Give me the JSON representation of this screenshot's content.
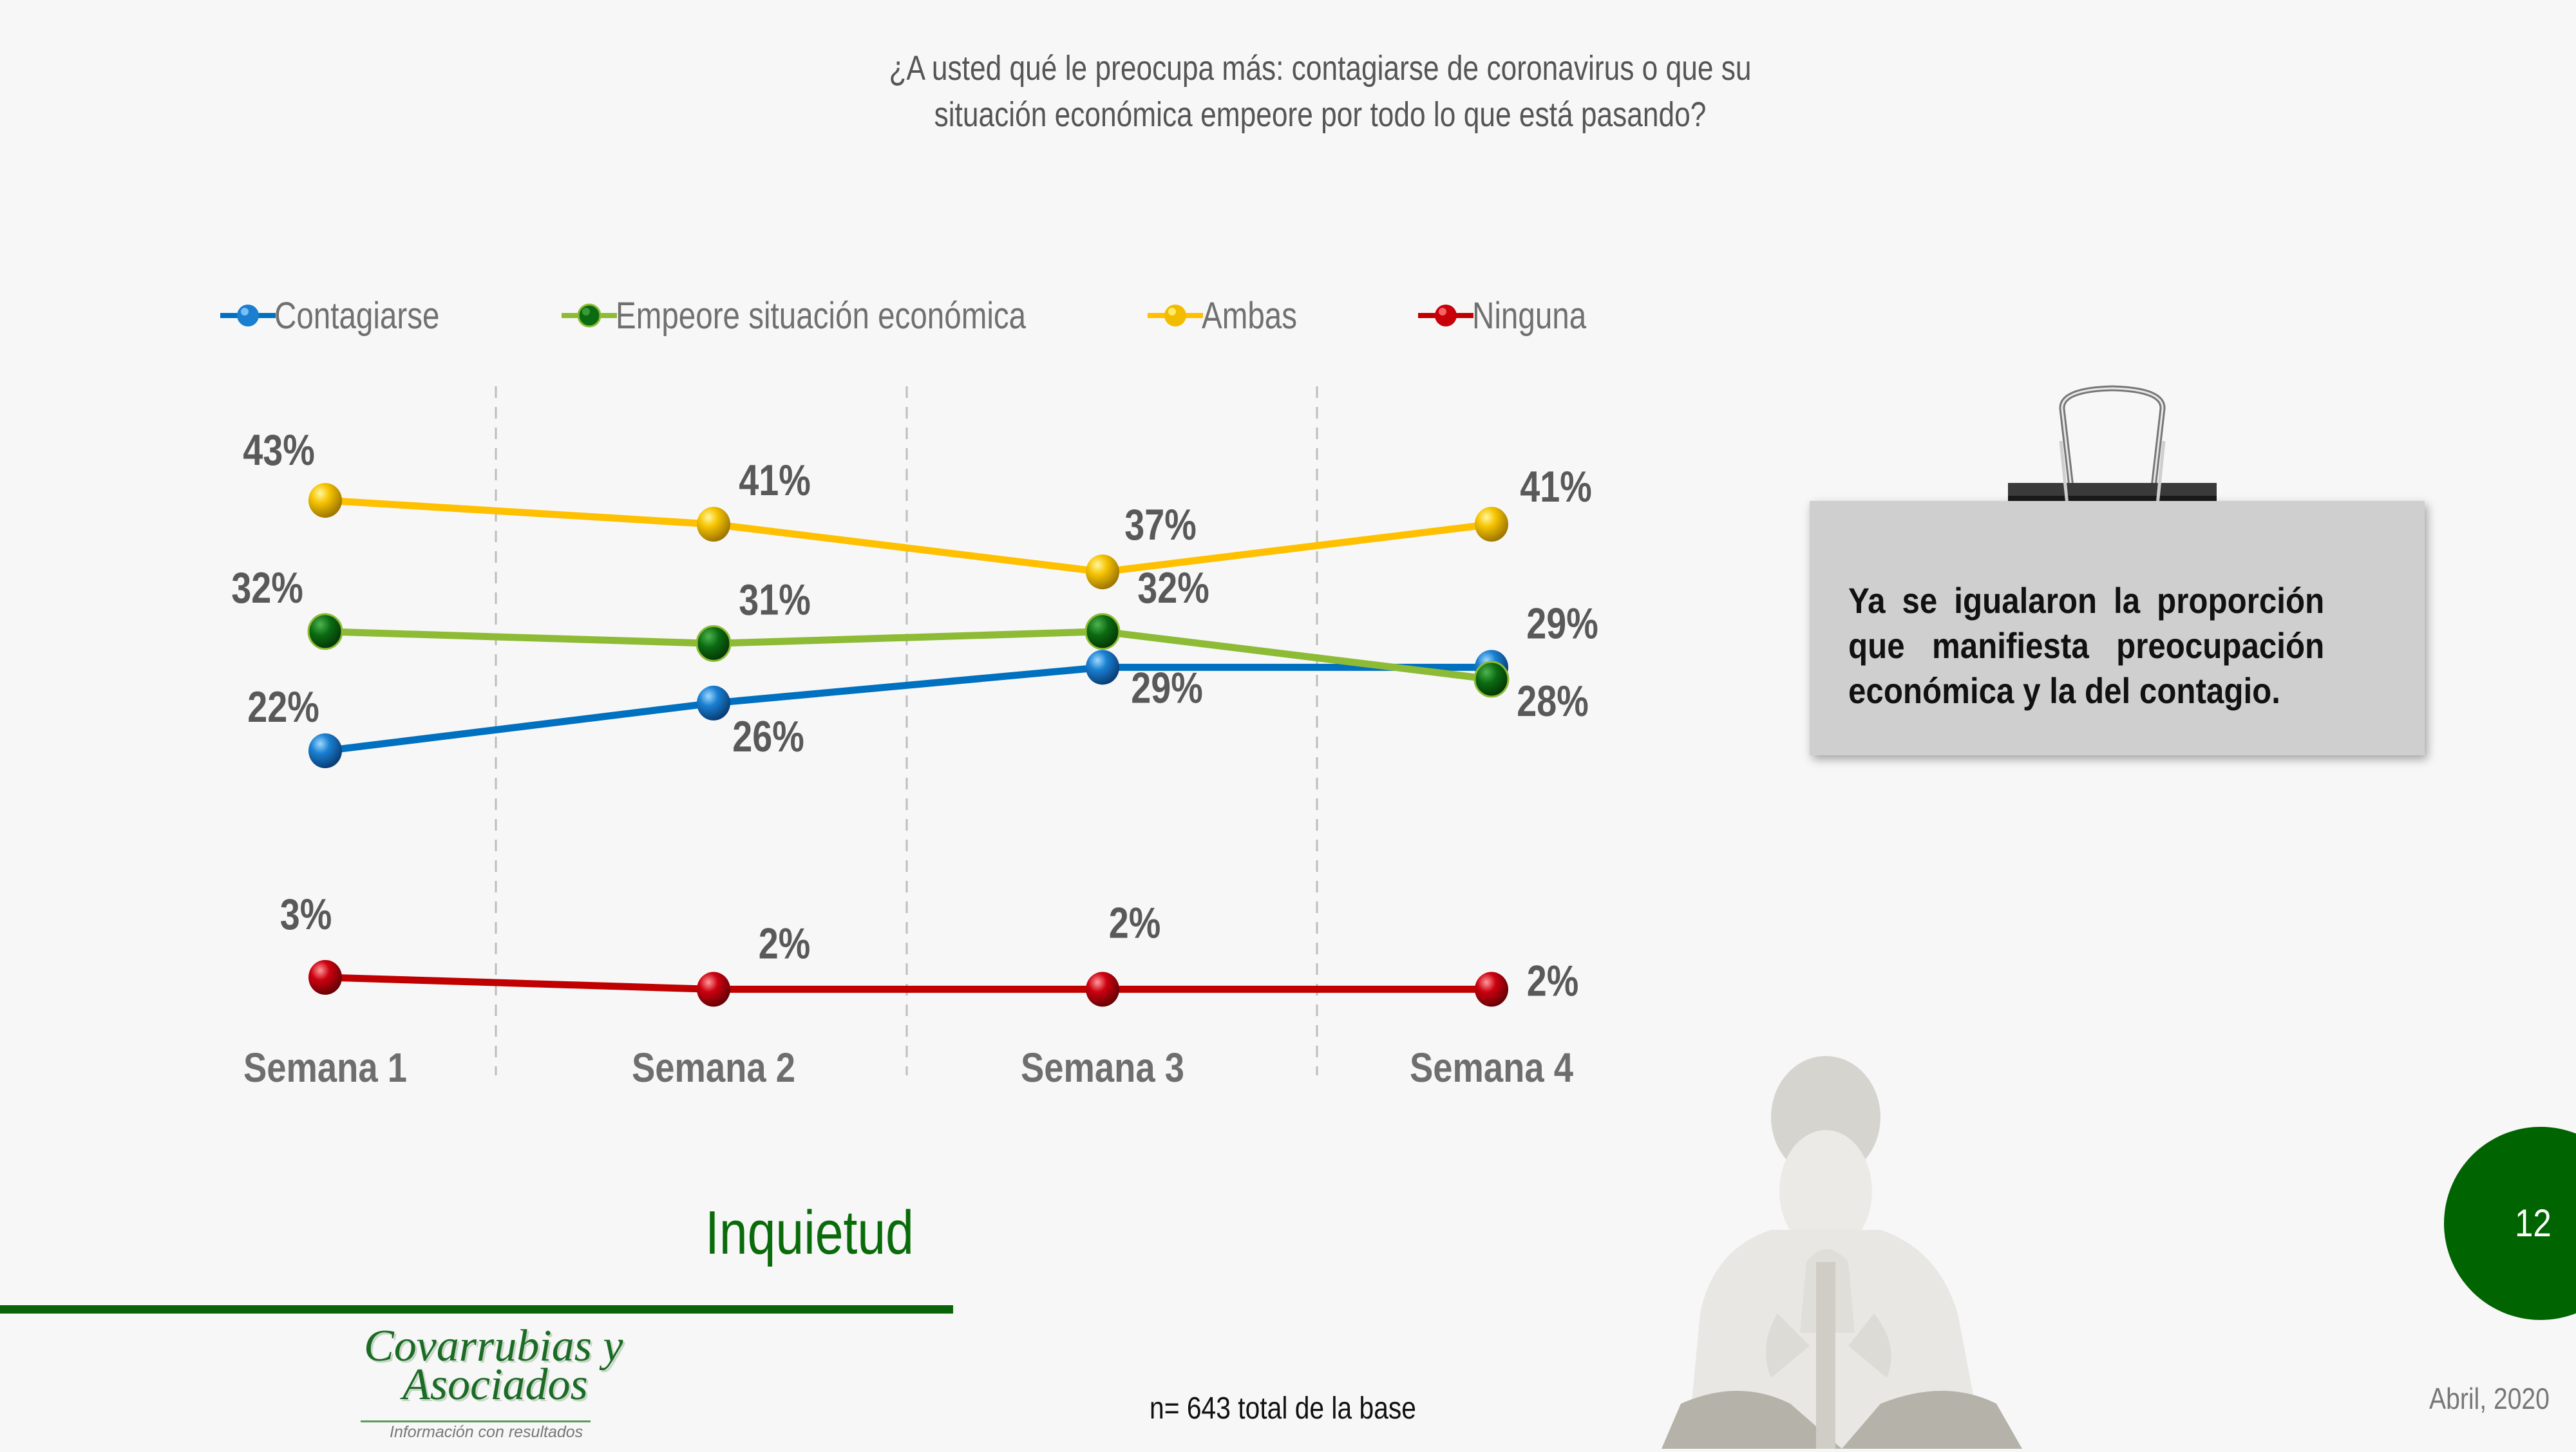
{
  "question": {
    "line1": "¿A usted qué le preocupa más: contagiarse de coronavirus o que su",
    "line2": "situación económica empeore por todo lo que está pasando?"
  },
  "legend": [
    {
      "label": "Contagiarse",
      "color": "#0070c0",
      "marker": "#1a7fd0",
      "icon": "blue-sphere-marker-icon"
    },
    {
      "label": "Empeore situación económica",
      "color": "#8dbb35",
      "marker": "#0b6b12",
      "icon": "green-sphere-marker-icon"
    },
    {
      "label": "Ambas",
      "color": "#ffc000",
      "marker": "#f2bd00",
      "icon": "yellow-sphere-marker-icon"
    },
    {
      "label": "Ninguna",
      "color": "#c00000",
      "marker": "#c8000a",
      "icon": "red-sphere-marker-icon"
    }
  ],
  "chart_data": {
    "type": "line",
    "title": "¿A usted qué le preocupa más: contagiarse de coronavirus o que su situación económica empeore por todo lo que está pasando?",
    "categories": [
      "Semana 1",
      "Semana 2",
      "Semana 3",
      "Semana 4"
    ],
    "series": [
      {
        "name": "Contagiarse",
        "values": [
          22,
          26,
          29,
          29
        ],
        "labels": [
          "22%",
          "26%",
          "29%",
          "29%"
        ]
      },
      {
        "name": "Empeore situación económica",
        "values": [
          32,
          31,
          32,
          28
        ],
        "labels": [
          "32%",
          "31%",
          "32%",
          "28%"
        ]
      },
      {
        "name": "Ambas",
        "values": [
          43,
          41,
          37,
          41
        ],
        "labels": [
          "43%",
          "41%",
          "37%",
          "41%"
        ]
      },
      {
        "name": "Ninguna",
        "values": [
          3,
          2,
          2,
          2
        ],
        "labels": [
          "3%",
          "2%",
          "2%",
          "2%"
        ]
      }
    ],
    "xlabel": "",
    "ylabel": "",
    "ylim": [
      0,
      45
    ],
    "grid": "vertical dashed separators",
    "legend_position": "top",
    "value_suffix": "%"
  },
  "note": {
    "text": "Ya se igualaron la proporción que manifiesta preocupación económica y la del contagio.",
    "icon": "binder-clip-icon"
  },
  "section_title": "Inquietud",
  "logo": {
    "line1": "Covarrubias y",
    "line2": "Asociados",
    "tagline": "Información con resultados"
  },
  "base_note": "n= 643 total de la base",
  "page_number": "12",
  "date": "Abril, 2020",
  "colors": {
    "brand_green": "#006400",
    "background": "#f7f7f7",
    "label_gray": "#595959"
  }
}
